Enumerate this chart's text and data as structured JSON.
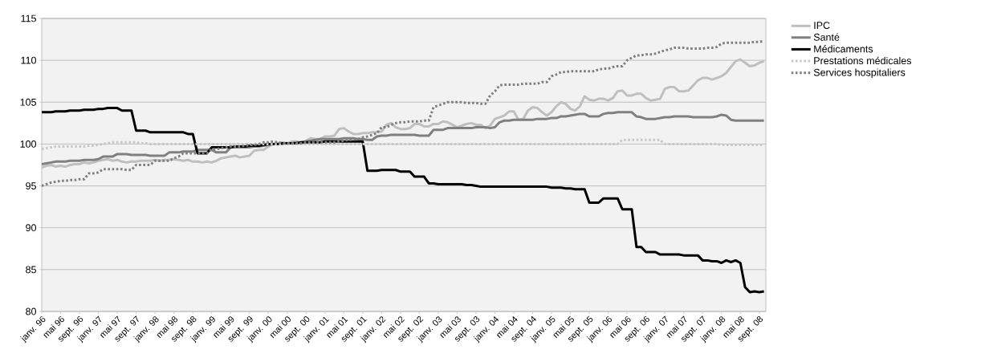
{
  "chart_data": {
    "type": "line",
    "categories": [
      "janv. 96",
      null,
      null,
      null,
      "mai 96",
      null,
      null,
      null,
      "sept. 96",
      null,
      null,
      null,
      "janv. 97",
      null,
      null,
      null,
      "mai 97",
      null,
      null,
      null,
      "sept. 97",
      null,
      null,
      null,
      "janv. 98",
      null,
      null,
      null,
      "mai 98",
      null,
      null,
      null,
      "sept. 98",
      null,
      null,
      null,
      "janv. 99",
      null,
      null,
      null,
      "mai 99",
      null,
      null,
      null,
      "sept. 99",
      null,
      null,
      null,
      "janv. 00",
      null,
      null,
      null,
      "mai 00",
      null,
      null,
      null,
      "sept. 00",
      null,
      null,
      null,
      "janv. 01",
      null,
      null,
      null,
      "mai 01",
      null,
      null,
      null,
      "sept. 01",
      null,
      null,
      null,
      "janv. 02",
      null,
      null,
      null,
      "mai 02",
      null,
      null,
      null,
      "sept. 02",
      null,
      null,
      null,
      "janv. 03",
      null,
      null,
      null,
      "mai 03",
      null,
      null,
      null,
      "sept. 03",
      null,
      null,
      null,
      "janv. 04",
      null,
      null,
      null,
      "mai 04",
      null,
      null,
      null,
      "sept. 04",
      null,
      null,
      null,
      "janv. 05",
      null,
      null,
      null,
      "mai 05",
      null,
      null,
      null,
      "sept. 05",
      null,
      null,
      null,
      "janv. 06",
      null,
      null,
      null,
      "mai 06",
      null,
      null,
      null,
      "sept. 06",
      null,
      null,
      null,
      "janv. 07",
      null,
      null,
      null,
      "mai 07",
      null,
      null,
      null,
      "sept. 07",
      null,
      null,
      null,
      "janv. 08",
      null,
      null,
      null,
      "mai 08",
      null,
      null,
      null,
      "sept. 08",
      null
    ],
    "ylim": [
      80,
      115
    ],
    "yticks": [
      80,
      85,
      90,
      95,
      100,
      105,
      110,
      115
    ],
    "grid": "y",
    "legend": "right",
    "series": [
      {
        "name": "IPC",
        "color": "#bfbfbf",
        "line_style": "solid",
        "values": [
          97.2,
          97.4,
          97.5,
          97.3,
          97.4,
          97.3,
          97.5,
          97.6,
          97.6,
          97.8,
          97.7,
          97.8,
          98.0,
          98.1,
          98.2,
          98.0,
          98.1,
          97.9,
          97.8,
          97.9,
          97.9,
          98.0,
          98.0,
          98.0,
          98.1,
          98.0,
          98.1,
          98.1,
          98.2,
          98.1,
          98.0,
          98.1,
          97.9,
          97.9,
          97.8,
          97.9,
          97.8,
          98.0,
          98.3,
          98.4,
          98.5,
          98.6,
          98.4,
          98.5,
          98.6,
          99.2,
          99.3,
          99.3,
          99.7,
          100.0,
          100.1,
          100.2,
          100.1,
          100.3,
          100.3,
          100.0,
          100.4,
          100.7,
          100.6,
          100.6,
          100.9,
          100.9,
          101.0,
          101.8,
          101.9,
          101.5,
          101.2,
          101.2,
          101.3,
          101.3,
          101.4,
          101.4,
          101.5,
          102.3,
          102.5,
          102.0,
          101.8,
          101.8,
          101.9,
          102.4,
          102.4,
          102.1,
          102.1,
          102.4,
          102.4,
          102.7,
          102.6,
          102.3,
          102.0,
          102.2,
          102.4,
          102.5,
          102.3,
          102.3,
          101.9,
          102.2,
          103.0,
          103.2,
          103.4,
          103.9,
          103.9,
          102.9,
          103.0,
          104.0,
          104.4,
          104.3,
          103.8,
          103.4,
          103.8,
          104.5,
          105.0,
          104.8,
          104.2,
          104.0,
          104.5,
          105.7,
          105.3,
          105.2,
          105.4,
          105.4,
          105.2,
          105.5,
          106.3,
          106.4,
          105.8,
          105.8,
          106.0,
          106.0,
          105.5,
          105.2,
          105.3,
          105.4,
          106.6,
          106.8,
          106.8,
          106.3,
          106.3,
          106.4,
          107.0,
          107.6,
          107.9,
          107.9,
          107.7,
          107.9,
          108.1,
          108.5,
          109.2,
          109.9,
          110.1,
          109.7,
          109.3,
          109.4,
          109.7,
          109.9
        ]
      },
      {
        "name": "Santé",
        "color": "#808080",
        "line_style": "solid",
        "values": [
          97.6,
          97.7,
          97.8,
          97.9,
          97.9,
          97.9,
          98.0,
          98.0,
          98.0,
          98.1,
          98.1,
          98.1,
          98.2,
          98.5,
          98.5,
          98.5,
          98.8,
          98.8,
          98.8,
          98.7,
          98.7,
          98.7,
          98.7,
          98.6,
          98.6,
          98.6,
          98.6,
          99.0,
          99.0,
          99.0,
          99.1,
          99.1,
          99.1,
          99.3,
          99.3,
          99.3,
          99.3,
          99.0,
          99.0,
          99.0,
          99.6,
          99.6,
          99.6,
          99.6,
          99.6,
          99.7,
          99.7,
          99.8,
          99.9,
          100.0,
          100.0,
          100.0,
          100.1,
          100.1,
          100.2,
          100.2,
          100.3,
          100.4,
          100.5,
          100.6,
          100.6,
          100.6,
          100.6,
          100.6,
          100.7,
          100.7,
          100.7,
          100.6,
          100.6,
          100.5,
          100.5,
          100.9,
          101.0,
          101.0,
          101.1,
          101.1,
          101.1,
          101.1,
          101.1,
          101.1,
          101.0,
          101.0,
          101.0,
          101.7,
          101.7,
          101.7,
          101.9,
          101.9,
          101.9,
          101.9,
          101.9,
          101.9,
          102.0,
          102.0,
          102.0,
          101.9,
          102.0,
          102.6,
          102.8,
          102.8,
          102.9,
          102.9,
          102.9,
          102.9,
          102.9,
          103.0,
          103.0,
          103.0,
          103.1,
          103.1,
          103.3,
          103.3,
          103.4,
          103.5,
          103.6,
          103.6,
          103.3,
          103.3,
          103.3,
          103.6,
          103.7,
          103.7,
          103.8,
          103.8,
          103.8,
          103.8,
          103.3,
          103.2,
          103.0,
          103.0,
          103.0,
          103.1,
          103.2,
          103.2,
          103.3,
          103.3,
          103.3,
          103.3,
          103.2,
          103.2,
          103.2,
          103.2,
          103.2,
          103.3,
          103.5,
          103.4,
          102.9,
          102.8,
          102.8,
          102.8,
          102.8,
          102.8,
          102.8,
          102.8
        ]
      },
      {
        "name": "Médicaments",
        "color": "#000000",
        "line_style": "solid",
        "values": [
          103.8,
          103.8,
          103.8,
          103.9,
          103.9,
          103.9,
          104.0,
          104.0,
          104.0,
          104.1,
          104.1,
          104.1,
          104.2,
          104.2,
          104.3,
          104.3,
          104.3,
          104.0,
          104.0,
          104.0,
          101.6,
          101.6,
          101.6,
          101.4,
          101.4,
          101.4,
          101.4,
          101.4,
          101.4,
          101.4,
          101.4,
          101.2,
          101.2,
          98.9,
          98.9,
          98.9,
          99.6,
          99.6,
          99.6,
          99.6,
          99.6,
          99.7,
          99.7,
          99.7,
          99.8,
          99.8,
          99.8,
          99.9,
          100.0,
          100.0,
          100.0,
          100.1,
          100.1,
          100.1,
          100.1,
          100.2,
          100.2,
          100.2,
          100.2,
          100.2,
          100.3,
          100.3,
          100.3,
          100.3,
          100.3,
          100.3,
          100.3,
          100.3,
          100.3,
          96.8,
          96.8,
          96.8,
          96.9,
          96.9,
          96.9,
          96.9,
          96.7,
          96.7,
          96.7,
          96.1,
          96.1,
          96.1,
          95.3,
          95.3,
          95.2,
          95.2,
          95.2,
          95.2,
          95.2,
          95.2,
          95.1,
          95.1,
          95.0,
          94.9,
          94.9,
          94.9,
          94.9,
          94.9,
          94.9,
          94.9,
          94.9,
          94.9,
          94.9,
          94.9,
          94.9,
          94.9,
          94.9,
          94.9,
          94.8,
          94.8,
          94.8,
          94.7,
          94.7,
          94.6,
          94.6,
          94.6,
          93.0,
          93.0,
          93.0,
          93.5,
          93.5,
          93.5,
          93.5,
          92.2,
          92.2,
          92.2,
          87.7,
          87.7,
          87.1,
          87.1,
          87.1,
          86.8,
          86.8,
          86.8,
          86.8,
          86.8,
          86.7,
          86.7,
          86.7,
          86.7,
          86.1,
          86.1,
          86.0,
          86.0,
          85.8,
          86.1,
          85.9,
          86.1,
          85.8,
          82.9,
          82.3,
          82.4,
          82.3,
          82.4
        ]
      },
      {
        "name": "Prestations médicales",
        "color": "#c8c8c8",
        "line_style": "dotted",
        "values": [
          99.4,
          99.5,
          99.6,
          99.7,
          99.7,
          99.7,
          99.7,
          99.7,
          99.7,
          99.7,
          99.8,
          99.8,
          99.9,
          100.0,
          100.1,
          100.2,
          100.2,
          100.2,
          100.2,
          100.2,
          100.2,
          100.1,
          100.1,
          100.0,
          100.0,
          100.0,
          100.0,
          100.0,
          100.0,
          100.0,
          100.0,
          100.0,
          100.0,
          100.0,
          100.0,
          100.0,
          100.0,
          100.0,
          100.0,
          100.0,
          100.0,
          100.0,
          100.0,
          100.0,
          100.0,
          100.0,
          100.0,
          100.0,
          100.0,
          100.0,
          100.0,
          100.0,
          100.0,
          100.0,
          100.0,
          100.0,
          100.0,
          100.0,
          100.0,
          100.0,
          100.0,
          100.0,
          100.0,
          100.0,
          100.0,
          100.0,
          100.0,
          100.0,
          100.0,
          100.0,
          100.0,
          100.0,
          100.0,
          100.0,
          100.0,
          100.0,
          100.0,
          100.0,
          100.0,
          100.0,
          100.0,
          100.0,
          100.0,
          100.0,
          100.0,
          100.0,
          100.0,
          100.0,
          100.0,
          100.0,
          100.0,
          100.0,
          100.0,
          100.0,
          100.0,
          100.0,
          100.0,
          100.0,
          100.0,
          100.0,
          100.0,
          100.0,
          100.0,
          100.0,
          100.0,
          100.0,
          100.0,
          100.0,
          100.0,
          100.0,
          100.0,
          100.0,
          100.0,
          100.0,
          100.0,
          100.0,
          100.0,
          100.0,
          100.0,
          100.0,
          100.0,
          100.0,
          100.0,
          100.5,
          100.5,
          100.5,
          100.5,
          100.5,
          100.5,
          100.5,
          100.5,
          100.5,
          100.0,
          100.0,
          100.0,
          100.0,
          100.0,
          100.0,
          100.0,
          100.0,
          100.0,
          100.0,
          100.0,
          100.0,
          99.9,
          99.9,
          99.9,
          99.9,
          99.9,
          99.9,
          99.9,
          99.9,
          99.9,
          99.9
        ]
      },
      {
        "name": "Services hospitaliers",
        "color": "#7f7f7f",
        "line_style": "dotted",
        "values": [
          95.0,
          95.2,
          95.4,
          95.5,
          95.6,
          95.6,
          95.7,
          95.7,
          95.8,
          95.8,
          96.5,
          96.5,
          96.6,
          97.0,
          97.0,
          97.0,
          97.0,
          97.0,
          96.9,
          96.9,
          97.5,
          97.5,
          97.5,
          97.5,
          98.0,
          98.0,
          98.0,
          98.0,
          98.3,
          98.5,
          98.9,
          98.9,
          98.9,
          98.9,
          98.9,
          98.9,
          99.4,
          99.4,
          99.5,
          99.6,
          99.7,
          99.7,
          99.7,
          99.8,
          99.9,
          99.9,
          100.0,
          100.2,
          100.2,
          100.3,
          100.2,
          100.1,
          100.1,
          100.1,
          100.1,
          100.1,
          100.2,
          100.2,
          100.2,
          100.2,
          100.2,
          100.2,
          100.2,
          100.3,
          100.4,
          100.5,
          100.5,
          100.6,
          100.8,
          100.9,
          101.1,
          101.3,
          102.0,
          102.0,
          102.3,
          102.5,
          102.6,
          102.6,
          102.7,
          102.7,
          102.7,
          102.8,
          102.8,
          104.4,
          104.6,
          104.8,
          105.0,
          105.0,
          105.0,
          105.0,
          104.9,
          104.9,
          104.9,
          104.8,
          104.8,
          105.8,
          106.3,
          107.0,
          107.1,
          107.1,
          107.1,
          107.1,
          107.2,
          107.2,
          107.2,
          107.2,
          107.4,
          107.4,
          108.1,
          108.3,
          108.6,
          108.6,
          108.7,
          108.7,
          108.7,
          108.7,
          108.7,
          108.7,
          108.9,
          109.0,
          109.0,
          109.2,
          109.3,
          109.3,
          110.0,
          110.3,
          110.6,
          110.6,
          110.7,
          110.7,
          110.8,
          111.0,
          111.2,
          111.3,
          111.5,
          111.5,
          111.5,
          111.4,
          111.4,
          111.4,
          111.4,
          111.5,
          111.5,
          111.6,
          112.0,
          112.1,
          112.1,
          112.1,
          112.1,
          112.1,
          112.1,
          112.2,
          112.2,
          112.3
        ]
      }
    ]
  }
}
